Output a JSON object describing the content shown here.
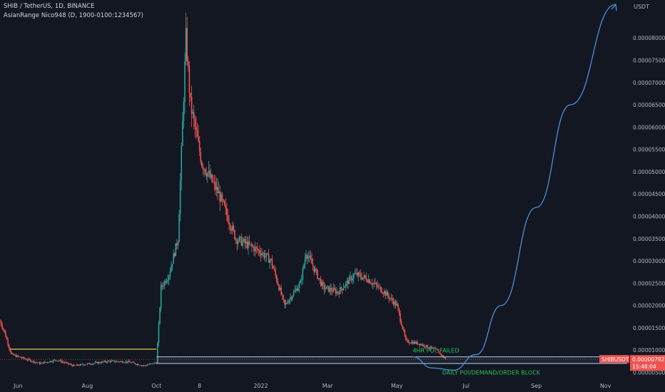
{
  "header": {
    "title": "SHIB / TetherUS, 1D, BINANCE",
    "indicator": "AsianRange Nico948 (D, 1900-0100:1234567)"
  },
  "colors": {
    "background": "#131722",
    "up": "#26a69a",
    "down": "#ef5350",
    "yellow_line": "#f7e14b",
    "zone_line": "#8fb3c9",
    "projection": "#4a90d9",
    "annotation": "#22c55e",
    "price_tag": "#ef5350",
    "axis_text": "#b2b5be"
  },
  "chart_data": {
    "type": "line",
    "title": "SHIB / TetherUS, 1D, BINANCE",
    "xlabel": "",
    "ylabel": "USDT",
    "y_unit": "USDT",
    "x_ticks": [
      "Jun",
      "Aug",
      "Oct",
      "8",
      "2022",
      "Mar",
      "May",
      "Jul",
      "Sep",
      "Nov"
    ],
    "y_ticks": [
      "0.00008000",
      "0.00007500",
      "0.00007000",
      "0.00006500",
      "0.00006000",
      "0.00005500",
      "0.00005000",
      "0.00004500",
      "0.00004000",
      "0.00003500",
      "0.00003000",
      "0.00002500",
      "0.00002000",
      "0.00001500",
      "0.00001000",
      "0.00000500"
    ],
    "ylim": [
      3.8e-06,
      8.85e-05
    ],
    "xlim": [
      "2021-05-16",
      "2022-11-22"
    ],
    "grid": false,
    "price_series": {
      "name": "SHIBUSDT",
      "approximate_points": [
        [
          "2021-05-16",
          1.65e-05
        ],
        [
          "2021-05-20",
          1.4e-05
        ],
        [
          "2021-05-26",
          9e-06
        ],
        [
          "2021-06-05",
          8.2e-06
        ],
        [
          "2021-06-20",
          7e-06
        ],
        [
          "2021-07-05",
          7.8e-06
        ],
        [
          "2021-07-20",
          6.5e-06
        ],
        [
          "2021-08-05",
          7e-06
        ],
        [
          "2021-08-20",
          7.5e-06
        ],
        [
          "2021-09-05",
          7.4e-06
        ],
        [
          "2021-09-20",
          6.5e-06
        ],
        [
          "2021-10-01",
          7.2e-06
        ],
        [
          "2021-10-05",
          2.4e-05
        ],
        [
          "2021-10-12",
          2.7e-05
        ],
        [
          "2021-10-20",
          3.5e-05
        ],
        [
          "2021-10-27",
          8e-05
        ],
        [
          "2021-10-31",
          6.5e-05
        ],
        [
          "2021-11-10",
          5.2e-05
        ],
        [
          "2021-11-25",
          4.5e-05
        ],
        [
          "2021-12-10",
          3.5e-05
        ],
        [
          "2021-12-25",
          3.3e-05
        ],
        [
          "2022-01-01",
          3.2e-05
        ],
        [
          "2022-01-10",
          3e-05
        ],
        [
          "2022-01-22",
          2e-05
        ],
        [
          "2022-02-05",
          2.5e-05
        ],
        [
          "2022-02-10",
          3.2e-05
        ],
        [
          "2022-02-25",
          2.4e-05
        ],
        [
          "2022-03-10",
          2.3e-05
        ],
        [
          "2022-03-25",
          2.7e-05
        ],
        [
          "2022-04-05",
          2.6e-05
        ],
        [
          "2022-04-20",
          2.3e-05
        ],
        [
          "2022-05-01",
          2e-05
        ],
        [
          "2022-05-09",
          1.2e-05
        ],
        [
          "2022-05-20",
          1.15e-05
        ],
        [
          "2022-06-05",
          1e-05
        ],
        [
          "2022-06-13",
          7.9e-06
        ]
      ]
    },
    "levels": [
      {
        "name": "yellow-range-high",
        "value": 1.02e-05,
        "from": "2021-05-25",
        "to": "2021-10-01"
      },
      {
        "name": "zone-upper",
        "value": 8.5e-06,
        "from": "2021-10-01",
        "to": "2022-11-20"
      },
      {
        "name": "zone-lower",
        "value": 7e-06,
        "from": "2021-10-01",
        "to": "2022-11-20"
      }
    ],
    "projection_path": [
      [
        "2022-05-15",
        8.5e-06
      ],
      [
        "2022-06-01",
        6e-06
      ],
      [
        "2022-06-20",
        5.5e-06
      ],
      [
        "2022-07-10",
        9e-06
      ],
      [
        "2022-08-01",
        2e-05
      ],
      [
        "2022-09-01",
        4.2e-05
      ],
      [
        "2022-10-01",
        6.5e-05
      ],
      [
        "2022-11-10",
        8.75e-05
      ]
    ],
    "annotations": [
      {
        "text": "4HR POI, FAILED",
        "x": "2022-05-15",
        "y": 9.5e-06
      },
      {
        "text": "DAILY POI/DEMAND/ORDER BLOCK",
        "x": "2022-06-10",
        "y": 4.5e-06
      }
    ],
    "last_price": {
      "symbol": "SHIBUSDT",
      "value": "0.00000792",
      "countdown": "15:48:04"
    }
  }
}
